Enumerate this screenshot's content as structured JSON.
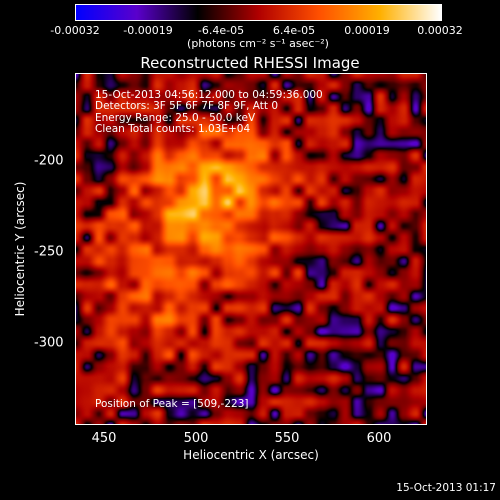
{
  "colorbar": {
    "ticks": [
      "-0.00032",
      "-0.00019",
      "-6.4e-05",
      "6.4e-05",
      "0.00019",
      "0.00032"
    ],
    "unit_label": "(photons cm⁻² s⁻¹ asec⁻²)",
    "range": [
      -0.00032,
      0.00032
    ],
    "colors": [
      "#0000ff",
      "#5a00cc",
      "#000000",
      "#b00000",
      "#ff5000",
      "#ffb000",
      "#ffffff"
    ]
  },
  "chart_data": {
    "type": "heatmap",
    "title": "Reconstructed RHESSI Image",
    "xlabel": "Heliocentric X (arcsec)",
    "ylabel": "Heliocentric Y (arcsec)",
    "xlim": [
      433,
      625
    ],
    "ylim": [
      -348,
      -155
    ],
    "xticks": [
      450,
      500,
      550,
      600
    ],
    "yticks": [
      -200,
      -250,
      -300
    ],
    "peak": [
      509,
      -223
    ],
    "annotations": [
      "15-Oct-2013 04:56:12.000 to 04:59:36.000",
      "Detectors: 3F 5F 6F 7F 8F 9F, Att 0",
      "Energy Range: 25.0 - 50.0 keV",
      "Clean     Total counts: 1.03E+04"
    ],
    "peak_label": "Position of Peak = [509,-223]"
  },
  "footer": {
    "timestamp": "15-Oct-2013 01:17"
  }
}
